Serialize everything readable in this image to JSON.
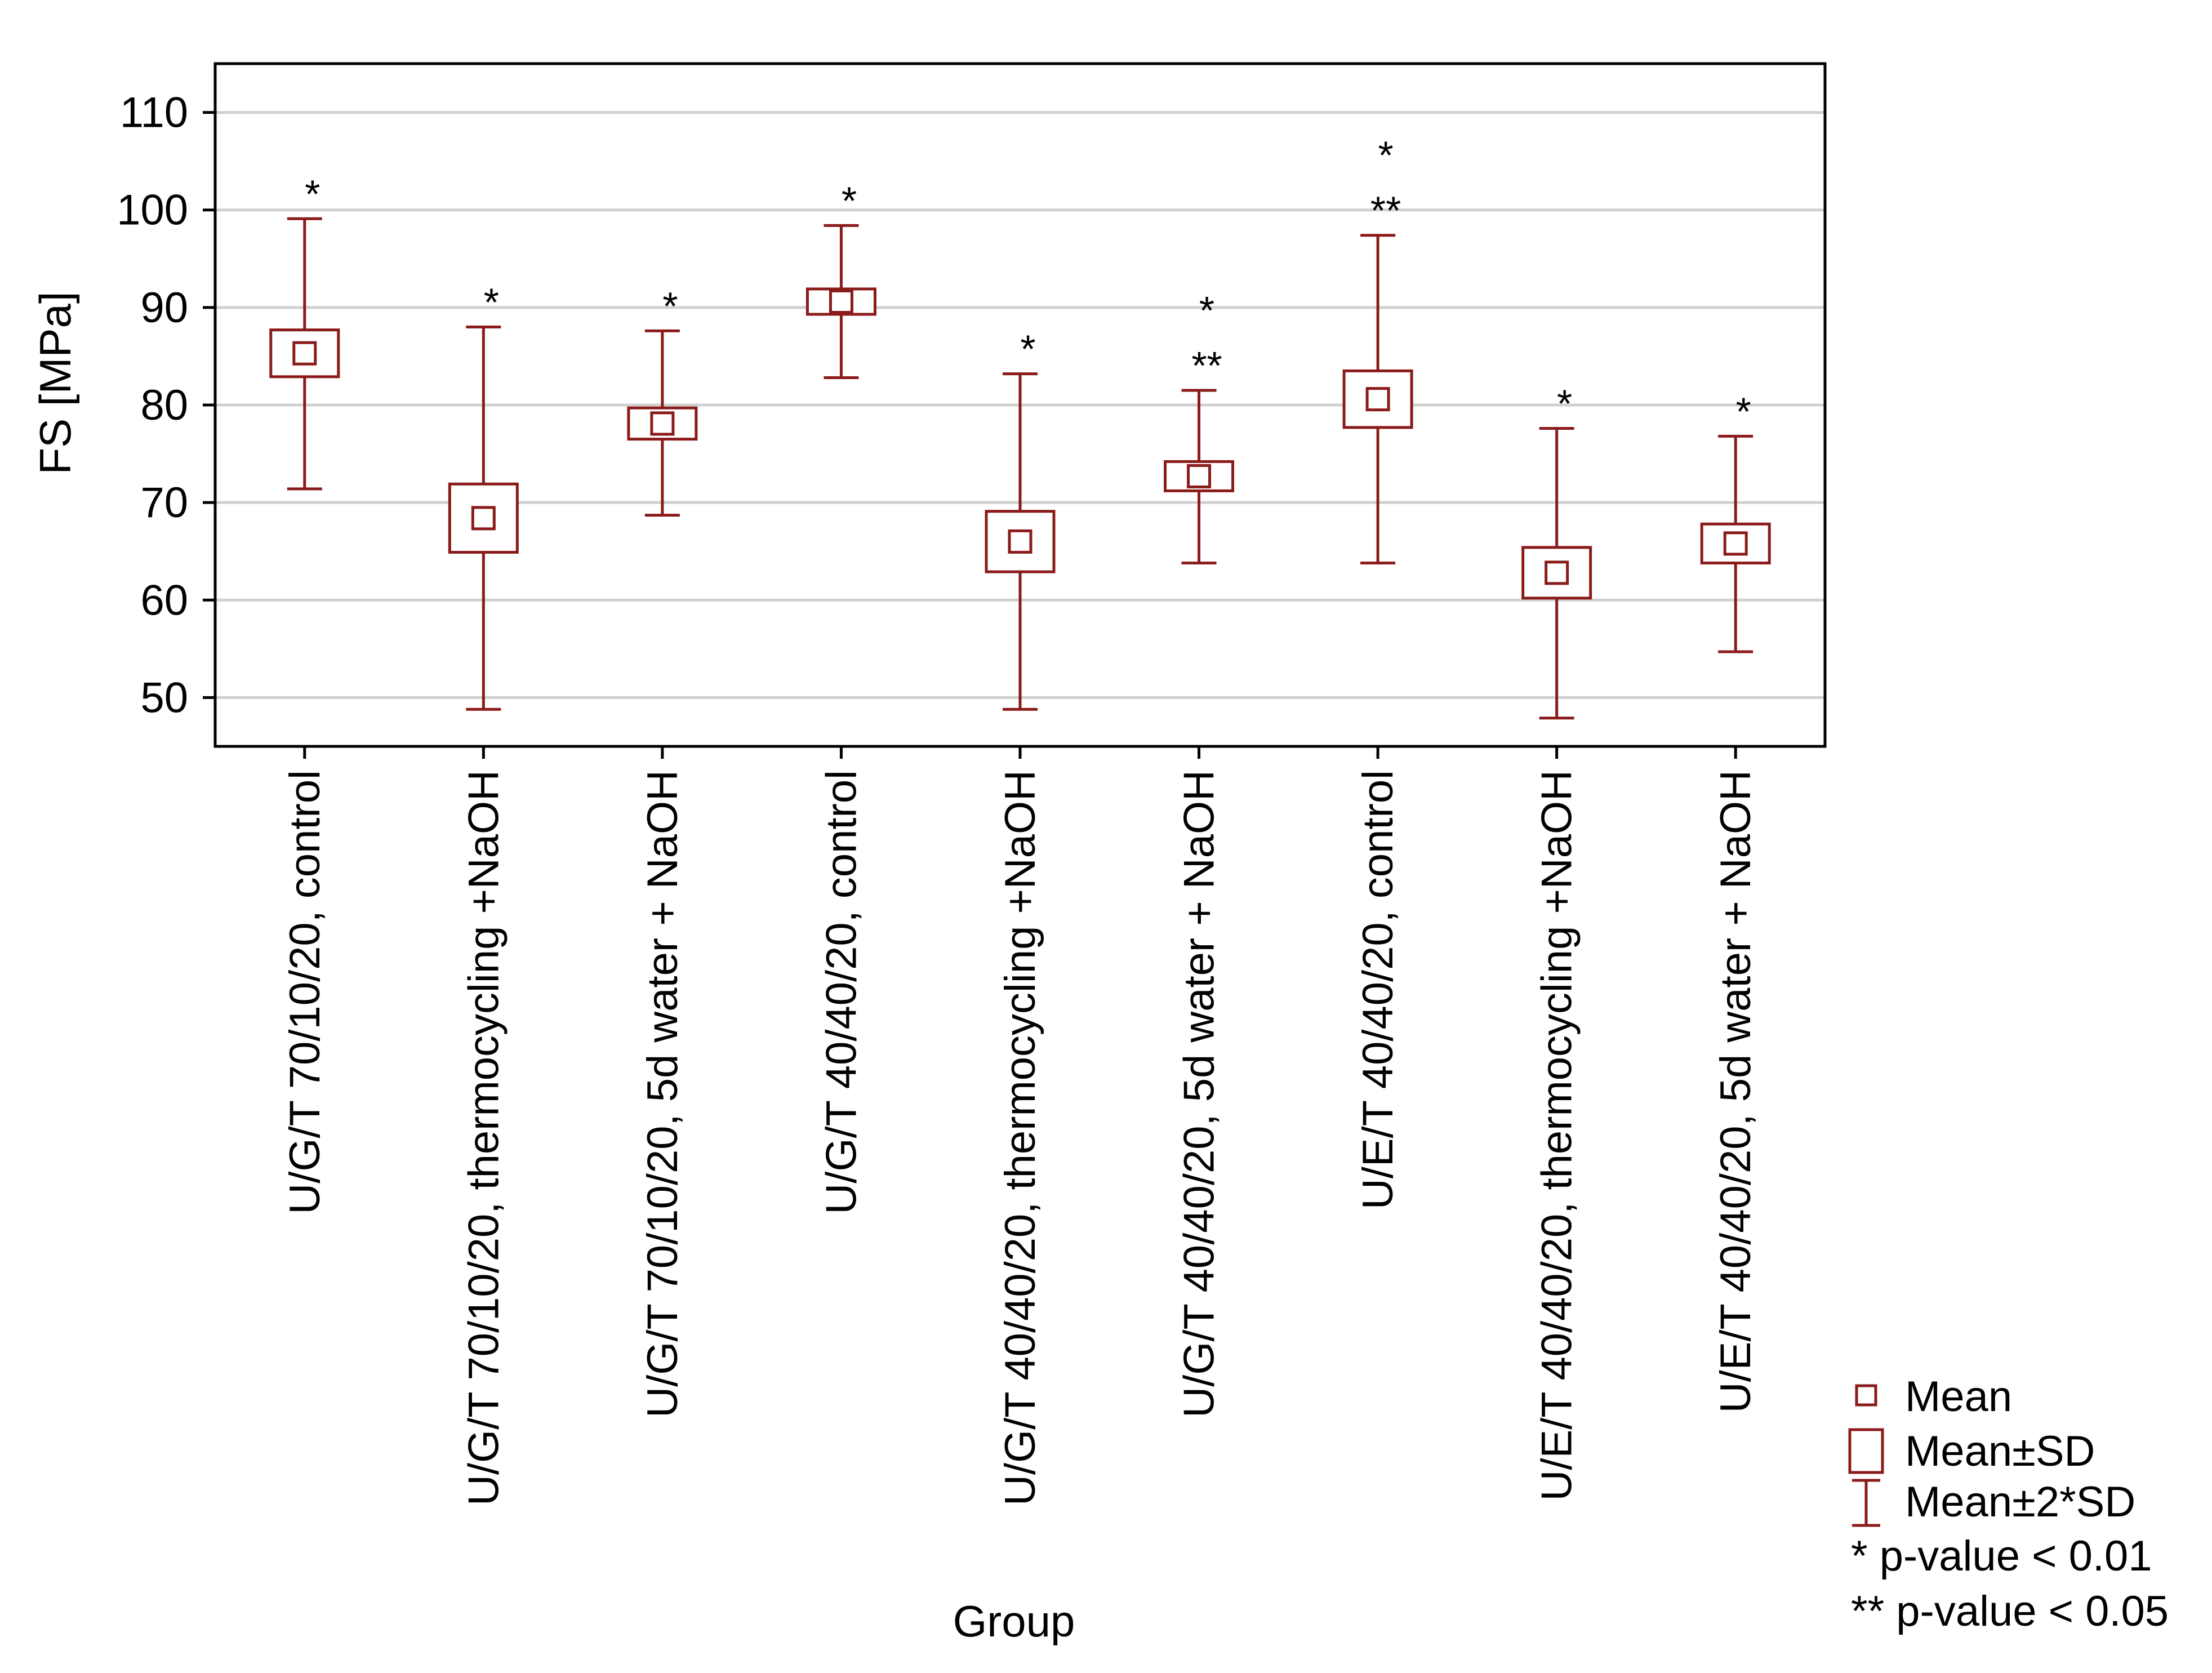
{
  "chart_data": {
    "type": "box",
    "title": "",
    "xlabel": "Group",
    "ylabel": "FS [MPa]",
    "ylim": [
      45,
      115
    ],
    "yticks": [
      50,
      60,
      70,
      80,
      90,
      100,
      110
    ],
    "grid": true,
    "categories": [
      "U/G/T 70/10/20, control",
      "U/G/T 70/10/20, thermocycling +NaOH",
      "U/G/T 70/10/20, 5d water + NaOH",
      "U/G/T 40/40/20, control",
      "U/G/T 40/40/20, thermocycling +NaOH",
      "U/G/T 40/40/20, 5d water + NaOH",
      "U/E/T 40/40/20, control",
      "U/E/T 40/40/20, thermocycling +NaOH",
      "U/E/T 40/40/20, 5d water + NaOH"
    ],
    "series": [
      {
        "name": "Mean",
        "values": [
          85.3,
          68.4,
          78.1,
          90.6,
          66.0,
          72.7,
          80.6,
          62.8,
          65.8
        ]
      },
      {
        "name": "Mean±SD",
        "lower": [
          82.9,
          64.9,
          76.5,
          89.3,
          62.9,
          71.2,
          77.7,
          60.2,
          63.8
        ],
        "upper": [
          87.7,
          71.9,
          79.7,
          91.9,
          69.1,
          74.2,
          83.5,
          65.4,
          67.8
        ]
      },
      {
        "name": "Mean±2*SD",
        "lower": [
          71.4,
          48.8,
          68.7,
          82.8,
          48.8,
          63.8,
          63.8,
          47.9,
          54.7
        ],
        "upper": [
          99.1,
          88.0,
          87.6,
          98.4,
          83.2,
          81.5,
          97.4,
          77.6,
          76.8
        ]
      }
    ],
    "annotations": [
      {
        "category": 0,
        "lines": [
          "*"
        ]
      },
      {
        "category": 1,
        "lines": [
          "*"
        ]
      },
      {
        "category": 2,
        "lines": [
          "*"
        ]
      },
      {
        "category": 3,
        "lines": [
          "*"
        ]
      },
      {
        "category": 4,
        "lines": [
          "*"
        ]
      },
      {
        "category": 5,
        "lines": [
          "*",
          "**"
        ]
      },
      {
        "category": 6,
        "lines": [
          "*",
          "**"
        ]
      },
      {
        "category": 7,
        "lines": [
          "*"
        ]
      },
      {
        "category": 8,
        "lines": [
          "*"
        ]
      }
    ],
    "legend": {
      "position": "bottom-right",
      "items": [
        "Mean",
        "Mean±SD",
        "Mean±2*SD"
      ],
      "notes": [
        "* p-value < 0.01",
        "** p-value < 0.05"
      ]
    },
    "colors": {
      "series": "#8b1a1a",
      "grid": "#d0d0d0",
      "axis": "#000000"
    }
  }
}
